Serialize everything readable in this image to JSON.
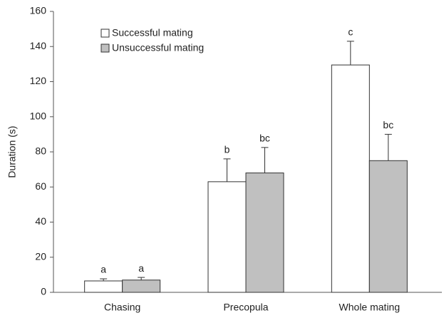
{
  "chart_data": {
    "type": "bar",
    "y_label": "Duration (s)",
    "categories": [
      "Chasing",
      "Precopula",
      "Whole mating"
    ],
    "series": [
      {
        "name": "Successful mating",
        "color": "#ffffff",
        "values": [
          6.5,
          63,
          129.5
        ],
        "errors": [
          1.2,
          13,
          13.5
        ],
        "annotations": [
          "a",
          "b",
          "c"
        ]
      },
      {
        "name": "Unsuccessful mating",
        "color": "#c0c0c0",
        "values": [
          7,
          68,
          75
        ],
        "errors": [
          1.5,
          14.5,
          15
        ],
        "annotations": [
          "a",
          "bc",
          "bc"
        ]
      }
    ],
    "ylim": [
      0,
      160
    ],
    "yticks": [
      0,
      20,
      40,
      60,
      80,
      100,
      120,
      140,
      160
    ],
    "grid": false,
    "legend": "upper left"
  }
}
